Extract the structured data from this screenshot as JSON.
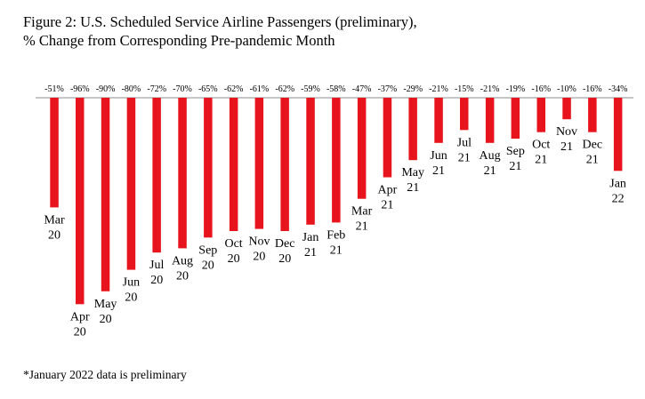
{
  "title_line1": "Figure 2: U.S. Scheduled Service Airline Passengers (preliminary),",
  "title_line2": "% Change from Corresponding Pre-pandemic Month",
  "footnote": "*January 2022 data is preliminary",
  "colors": {
    "bar": "#e8141d",
    "axis": "#8c8c8c"
  },
  "chart_data": {
    "type": "bar",
    "categories": [
      [
        "Mar",
        "20"
      ],
      [
        "Apr",
        "20"
      ],
      [
        "May",
        "20"
      ],
      [
        "Jun",
        "20"
      ],
      [
        "Jul",
        "20"
      ],
      [
        "Aug",
        "20"
      ],
      [
        "Sep",
        "20"
      ],
      [
        "Oct",
        "20"
      ],
      [
        "Nov",
        "20"
      ],
      [
        "Dec",
        "20"
      ],
      [
        "Jan",
        "21"
      ],
      [
        "Feb",
        "21"
      ],
      [
        "Mar",
        "21"
      ],
      [
        "Apr",
        "21"
      ],
      [
        "May",
        "21"
      ],
      [
        "Jun",
        "21"
      ],
      [
        "Jul",
        "21"
      ],
      [
        "Aug",
        "21"
      ],
      [
        "Sep",
        "21"
      ],
      [
        "Oct",
        "21"
      ],
      [
        "Nov",
        "21"
      ],
      [
        "Dec",
        "21"
      ],
      [
        "Jan",
        "22"
      ]
    ],
    "values": [
      -51,
      -96,
      -90,
      -80,
      -72,
      -70,
      -65,
      -62,
      -61,
      -62,
      -59,
      -58,
      -47,
      -37,
      -29,
      -21,
      -15,
      -21,
      -19,
      -16,
      -10,
      -16,
      -34
    ],
    "data_labels": [
      "-51%",
      "-96%",
      "-90%",
      "-80%",
      "-72%",
      "-70%",
      "-65%",
      "-62%",
      "-61%",
      "-62%",
      "-59%",
      "-58%",
      "-47%",
      "-37%",
      "-29%",
      "-21%",
      "-15%",
      "-21%",
      "-19%",
      "-16%",
      "-10%",
      "-16%",
      "-34%"
    ],
    "ylim": [
      -100,
      0
    ],
    "grid": false,
    "legend": "none"
  }
}
